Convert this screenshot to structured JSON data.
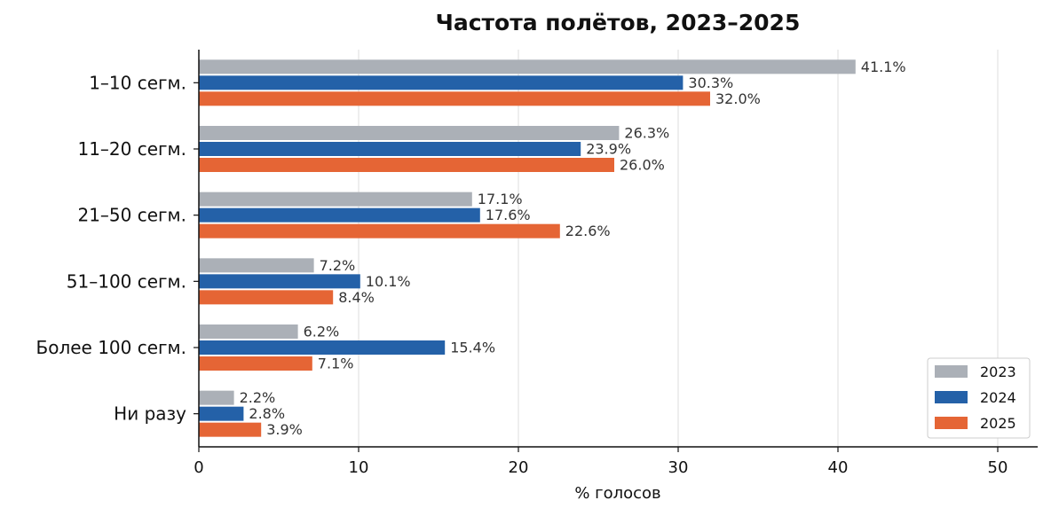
{
  "chart_data": {
    "type": "bar",
    "orientation": "horizontal",
    "title": "Частота полётов, 2023–2025",
    "xlabel": "% голосов",
    "ylabel": "",
    "xlim": [
      0,
      52.5
    ],
    "xticks": [
      0,
      10,
      20,
      30,
      40,
      50
    ],
    "grid": "vertical",
    "legend_position": "bottom-right",
    "categories": [
      "1–10 сегм.",
      "11–20 сегм.",
      "21–50 сегм.",
      "51–100 сегм.",
      "Более 100 сегм.",
      "Ни разу"
    ],
    "series": [
      {
        "name": "2023",
        "color": "#abb0b7",
        "values": [
          41.1,
          26.3,
          17.1,
          7.2,
          6.2,
          2.2
        ],
        "labels": [
          "41.1%",
          "26.3%",
          "17.1%",
          "7.2%",
          "6.2%",
          "2.2%"
        ]
      },
      {
        "name": "2024",
        "color": "#2461a8",
        "values": [
          30.3,
          23.9,
          17.6,
          10.1,
          15.4,
          2.8
        ],
        "labels": [
          "30.3%",
          "23.9%",
          "17.6%",
          "10.1%",
          "15.4%",
          "2.8%"
        ]
      },
      {
        "name": "2025",
        "color": "#e56535",
        "values": [
          32.0,
          26.0,
          22.6,
          8.4,
          7.1,
          3.9
        ],
        "labels": [
          "32.0%",
          "26.0%",
          "22.6%",
          "8.4%",
          "7.1%",
          "3.9%"
        ]
      }
    ]
  }
}
